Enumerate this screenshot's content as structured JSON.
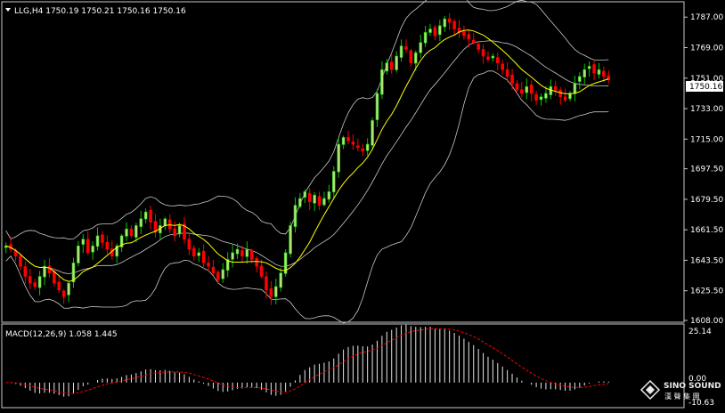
{
  "header": {
    "dropdown_icon": "triangle-down-icon",
    "symbol_line": "LLG,H4  1750.19 1750.21 1750.16 1750.16"
  },
  "price_axis": {
    "ticks": [
      "1787.00",
      "1769.00",
      "1751.00",
      "1733.00",
      "1715.00",
      "1697.50",
      "1679.50",
      "1661.50",
      "1643.50",
      "1625.50",
      "1608.00"
    ],
    "current_price": "1750.16"
  },
  "macd": {
    "label": "MACD(12,26,9) 1.058 1.445",
    "ticks": [
      "25.14",
      "0.00",
      "-10.63"
    ]
  },
  "watermark": {
    "logo_icon": "diamond-logo-icon",
    "title": "SINO SOUND",
    "subtitle": "漢 聲 集 團"
  },
  "colors": {
    "background": "#000000",
    "up_candle": "#00c800",
    "down_candle": "#ff0000",
    "candle_up_fill": "#b8e07a",
    "ma_line": "#ffff00",
    "bollinger": "#c8c8c8",
    "macd_hist": "#e6e6e6",
    "macd_signal": "#ff0000",
    "frame": "#c8c8c8"
  },
  "chart_data": {
    "type": "candlestick",
    "symbol": "LLG",
    "timeframe": "H4",
    "ylim": [
      1608.0,
      1795.0
    ],
    "close_series": [
      1652,
      1650,
      1646,
      1640,
      1634,
      1630,
      1628,
      1634,
      1640,
      1636,
      1630,
      1626,
      1622,
      1630,
      1642,
      1652,
      1656,
      1648,
      1652,
      1658,
      1654,
      1650,
      1646,
      1652,
      1658,
      1662,
      1658,
      1664,
      1668,
      1672,
      1666,
      1660,
      1664,
      1668,
      1662,
      1658,
      1664,
      1656,
      1650,
      1646,
      1648,
      1642,
      1640,
      1636,
      1632,
      1638,
      1644,
      1648,
      1650,
      1646,
      1650,
      1644,
      1640,
      1634,
      1626,
      1622,
      1628,
      1636,
      1648,
      1664,
      1676,
      1680,
      1684,
      1678,
      1682,
      1676,
      1680,
      1684,
      1696,
      1712,
      1716,
      1714,
      1712,
      1710,
      1708,
      1712,
      1726,
      1742,
      1756,
      1760,
      1756,
      1764,
      1770,
      1768,
      1760,
      1766,
      1772,
      1778,
      1780,
      1776,
      1782,
      1786,
      1784,
      1780,
      1778,
      1776,
      1774,
      1772,
      1768,
      1764,
      1762,
      1764,
      1760,
      1756,
      1752,
      1748,
      1744,
      1742,
      1746,
      1742,
      1738,
      1740,
      1742,
      1746,
      1744,
      1740,
      1738,
      1742,
      1748,
      1752,
      1756,
      1758,
      1754,
      1756,
      1752,
      1750
    ],
    "bollinger": {
      "period": 20,
      "deviations": 2
    },
    "moving_average": {
      "period": 10
    },
    "macd": {
      "fast": 12,
      "slow": 26,
      "signal": 9,
      "value": 1.058,
      "signal_value": 1.445,
      "ylim": [
        -10.63,
        25.14
      ]
    }
  }
}
